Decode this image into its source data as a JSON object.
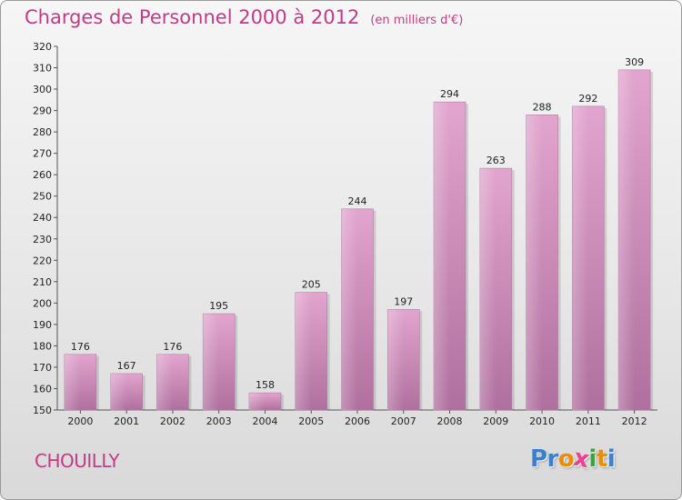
{
  "header": {
    "title": "Charges de Personnel 2000 à 2012",
    "subtitle": "(en milliers d'€)"
  },
  "footer": {
    "commune": "CHOUILLY",
    "logo_letters": [
      "P",
      "r",
      "o",
      "x",
      "i",
      "t",
      "i"
    ],
    "logo_colors": [
      "#3a7fd0",
      "#3a7fd0",
      "#f08a00",
      "#ea3f92",
      "#3aa63a",
      "#f08a00",
      "#3a7fd0"
    ]
  },
  "colors": {
    "title": "#c43a86",
    "bar_top": "#e2a5ce",
    "bar_bottom": "#b0709f"
  },
  "chart_data": {
    "type": "bar",
    "title": "Charges de Personnel 2000 à 2012",
    "subtitle": "(en milliers d'€)",
    "categories": [
      "2000",
      "2001",
      "2002",
      "2003",
      "2004",
      "2005",
      "2006",
      "2007",
      "2008",
      "2009",
      "2010",
      "2011",
      "2012"
    ],
    "values": [
      176,
      167,
      176,
      195,
      158,
      205,
      244,
      197,
      294,
      263,
      288,
      292,
      309
    ],
    "ylim": [
      150,
      320
    ],
    "yticks": [
      150,
      160,
      170,
      180,
      190,
      200,
      210,
      220,
      230,
      240,
      250,
      260,
      270,
      280,
      290,
      300,
      310,
      320
    ],
    "grid": false,
    "xlabel": "",
    "ylabel": ""
  }
}
